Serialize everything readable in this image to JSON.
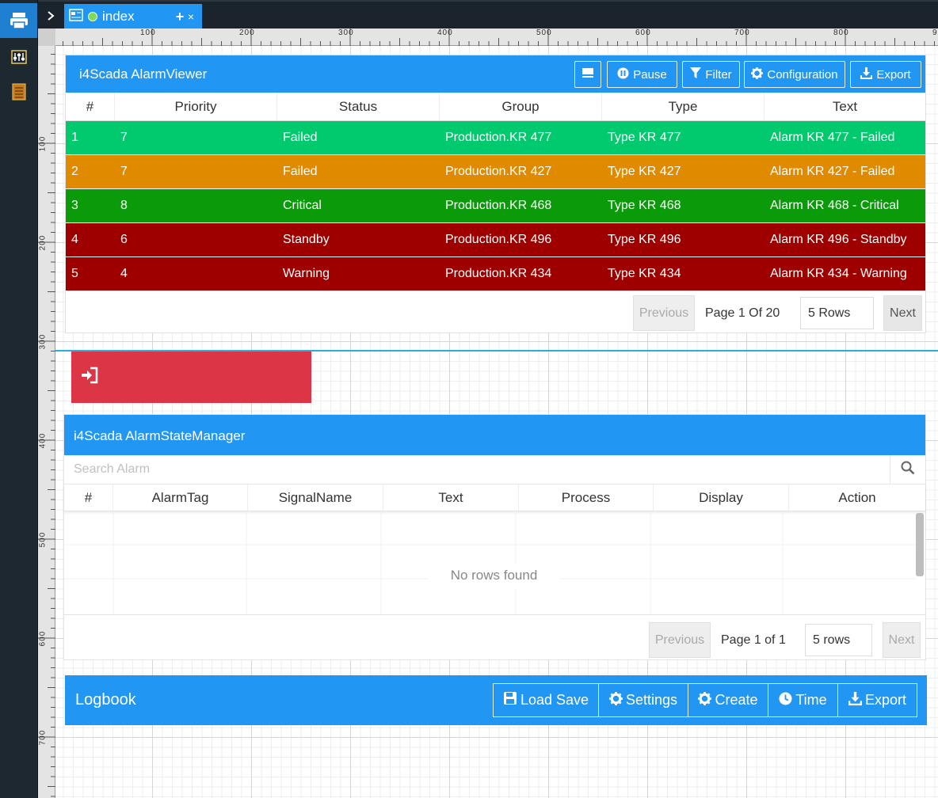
{
  "tabs": [
    {
      "label": "index",
      "close": "×"
    }
  ],
  "tab_add": "+",
  "ruler": {
    "top_ticks": [
      "100",
      "200",
      "300",
      "400",
      "500",
      "600",
      "700",
      "800",
      "9"
    ],
    "left_ticks": [
      "100",
      "200",
      "300",
      "400",
      "500",
      "600",
      "700"
    ]
  },
  "alarm_viewer": {
    "title": "i4Scada AlarmViewer",
    "buttons": {
      "pause": "Pause",
      "filter": "Filter",
      "configuration": "Configuration",
      "export": "Export"
    },
    "columns": [
      "#",
      "Priority",
      "Status",
      "Group",
      "Type",
      "Text"
    ],
    "rows": [
      {
        "n": "1",
        "priority": "7",
        "status": "Failed",
        "group": "Production.KR 477",
        "type": "Type KR 477",
        "text": "Alarm KR 477 - Failed",
        "color": "#00c96e"
      },
      {
        "n": "2",
        "priority": "7",
        "status": "Failed",
        "group": "Production.KR 427",
        "type": "Type KR 427",
        "text": "Alarm KR 427 - Failed",
        "color": "#e08a00"
      },
      {
        "n": "3",
        "priority": "8",
        "status": "Critical",
        "group": "Production.KR 468",
        "type": "Type KR 468",
        "text": "Alarm KR 468 - Critical",
        "color": "#0a9a0a"
      },
      {
        "n": "4",
        "priority": "6",
        "status": "Standby",
        "group": "Production.KR 496",
        "type": "Type KR 496",
        "text": "Alarm KR 496 - Standby",
        "color": "#9e0000"
      },
      {
        "n": "5",
        "priority": "4",
        "status": "Warning",
        "group": "Production.KR 434",
        "type": "Type KR 434",
        "text": "Alarm KR 434 - Warning",
        "color": "#9e0000"
      }
    ],
    "pager": {
      "previous": "Previous",
      "page_text": "Page 1 Of 20",
      "rows": "5 Rows",
      "next": "Next"
    }
  },
  "alarm_state_manager": {
    "title": "i4Scada AlarmStateManager",
    "search_placeholder": "Search Alarm",
    "columns": [
      "#",
      "AlarmTag",
      "SignalName",
      "Text",
      "Process",
      "Display",
      "Action"
    ],
    "empty": "No rows found",
    "pager": {
      "previous": "Previous",
      "page_text": "Page 1 of 1",
      "rows": "5 rows",
      "next": "Next"
    }
  },
  "logbook": {
    "title": "Logbook",
    "buttons": {
      "load_save": "Load Save",
      "settings": "Settings",
      "create": "Create",
      "time": "Time",
      "export": "Export"
    }
  },
  "colors": {
    "accent": "#2196f3",
    "login": "#dc3545"
  }
}
